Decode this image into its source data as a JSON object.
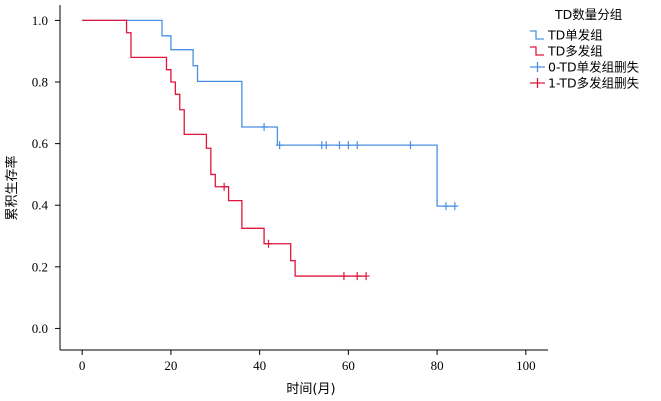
{
  "chart_data": {
    "type": "line",
    "title": "",
    "xlabel": "时间(月)",
    "ylabel": "累积生存率",
    "xlim": [
      -5,
      105
    ],
    "ylim": [
      -0.07,
      1.05
    ],
    "xticks": [
      0,
      20,
      40,
      60,
      80,
      100
    ],
    "xtick_labels": [
      "0",
      "20",
      "40",
      "60",
      "80",
      "100"
    ],
    "yticks": [
      0.0,
      0.2,
      0.4,
      0.6,
      0.8,
      1.0
    ],
    "ytick_labels": [
      "0.0",
      "0.2",
      "0.4",
      "0.6",
      "0.8",
      "1.0"
    ],
    "legend": {
      "title": "TD数量分组",
      "position": "top-right",
      "entries": [
        "TD单发组",
        "TD多发组",
        "0-TD单发组删失",
        "1-TD多发组删失"
      ]
    },
    "series": [
      {
        "name": "TD单发组",
        "color": "#4a90e2",
        "steps": [
          [
            0,
            1.0
          ],
          [
            18,
            0.95
          ],
          [
            20,
            0.905
          ],
          [
            25,
            0.853
          ],
          [
            26,
            0.802
          ],
          [
            36,
            0.654
          ],
          [
            44,
            0.595
          ],
          [
            80,
            0.397
          ],
          [
            84,
            0.397
          ]
        ],
        "censored": [
          [
            41,
            0.654
          ],
          [
            44.5,
            0.595
          ],
          [
            54,
            0.595
          ],
          [
            55,
            0.595
          ],
          [
            58,
            0.595
          ],
          [
            60,
            0.595
          ],
          [
            62,
            0.595
          ],
          [
            74,
            0.595
          ],
          [
            82,
            0.397
          ],
          [
            84,
            0.397
          ]
        ]
      },
      {
        "name": "TD多发组",
        "color": "#e0163c",
        "steps": [
          [
            0,
            1.0
          ],
          [
            10,
            0.96
          ],
          [
            11,
            0.88
          ],
          [
            19,
            0.84
          ],
          [
            20,
            0.8
          ],
          [
            21,
            0.76
          ],
          [
            22,
            0.71
          ],
          [
            23,
            0.63
          ],
          [
            28,
            0.585
          ],
          [
            29,
            0.5
          ],
          [
            30,
            0.46
          ],
          [
            33,
            0.415
          ],
          [
            36,
            0.325
          ],
          [
            41,
            0.275
          ],
          [
            47,
            0.22
          ],
          [
            48,
            0.17
          ],
          [
            64,
            0.17
          ]
        ],
        "censored": [
          [
            32,
            0.46
          ],
          [
            42,
            0.275
          ],
          [
            59,
            0.17
          ],
          [
            62,
            0.17
          ],
          [
            64,
            0.17
          ]
        ]
      }
    ]
  }
}
